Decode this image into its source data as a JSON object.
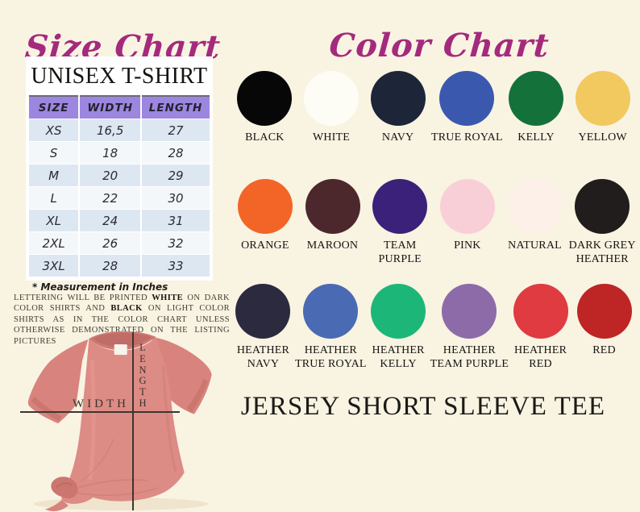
{
  "theme": {
    "background": "#f9f3e2",
    "title_color": "#a42a7d",
    "table_header_bg": "#9c86e0",
    "table_band_bg": "#dde7f2",
    "panel_bg": "#fefefe",
    "shirt_color": "#dd8b85"
  },
  "size_chart": {
    "title": "Size Chart",
    "subtitle": "UNISEX T-SHIRT",
    "columns": [
      "SIZE",
      "WIDTH",
      "LENGTH"
    ],
    "rows": [
      [
        "XS",
        "16,5",
        "27"
      ],
      [
        "S",
        "18",
        "28"
      ],
      [
        "M",
        "20",
        "29"
      ],
      [
        "L",
        "22",
        "30"
      ],
      [
        "XL",
        "24",
        "31"
      ],
      [
        "2XL",
        "26",
        "32"
      ],
      [
        "3XL",
        "28",
        "33"
      ]
    ],
    "footnote": "* Measurement in Inches"
  },
  "lettering_note": {
    "part1": "LETTERING WILL BE PRINTED ",
    "highlight1": "WHITE",
    "part2": " ON DARK COLOR SHIRTS AND ",
    "highlight2": "BLACK",
    "part3": " ON LIGHT COLOR SHIRTS AS IN THE COLOR CHART UNLESS OTHERWISE DEMONSTRATED ON THE LISTING PICTURES"
  },
  "tshirt_figure": {
    "width_label": "WIDTH",
    "length_label": "LENGTH"
  },
  "color_chart": {
    "title": "Color Chart",
    "rows": [
      [
        {
          "name": "black",
          "hex": "#070707",
          "label": [
            "BLACK"
          ]
        },
        {
          "name": "white",
          "hex": "#fdfdf6",
          "label": [
            "WHITE"
          ]
        },
        {
          "name": "navy",
          "hex": "#1d2538",
          "label": [
            "NAVY"
          ]
        },
        {
          "name": "true-royal",
          "hex": "#3a59ae",
          "label": [
            "TRUE ROYAL"
          ]
        },
        {
          "name": "kelly",
          "hex": "#15713a",
          "label": [
            "KELLY"
          ]
        },
        {
          "name": "yellow",
          "hex": "#f2c95f",
          "label": [
            "YELLOW"
          ]
        }
      ],
      [
        {
          "name": "orange",
          "hex": "#f26527",
          "label": [
            "ORANGE"
          ]
        },
        {
          "name": "maroon",
          "hex": "#4c282c",
          "label": [
            "MAROON"
          ]
        },
        {
          "name": "team-purple",
          "hex": "#3b2179",
          "label": [
            "TEAM",
            "PURPLE"
          ]
        },
        {
          "name": "pink",
          "hex": "#f9cfd7",
          "label": [
            "PINK"
          ]
        },
        {
          "name": "natural",
          "hex": "#fdf0e8",
          "label": [
            "NATURAL"
          ]
        },
        {
          "name": "dark-grey-heather",
          "hex": "#211d1c",
          "label": [
            "DARK GREY",
            "HEATHER"
          ]
        }
      ],
      [
        {
          "name": "heather-navy",
          "hex": "#2c2a3e",
          "label": [
            "HEATHER",
            "NAVY"
          ]
        },
        {
          "name": "heather-true-royal",
          "hex": "#4a6ab3",
          "label": [
            "HEATHER",
            "TRUE ROYAL"
          ]
        },
        {
          "name": "heather-kelly",
          "hex": "#1cb778",
          "label": [
            "HEATHER",
            "KELLY"
          ]
        },
        {
          "name": "heather-team-purple",
          "hex": "#8d6ba9",
          "label": [
            "HEATHER",
            "TEAM PURPLE"
          ]
        },
        {
          "name": "heather-red",
          "hex": "#df3b40",
          "label": [
            "HEATHER",
            "RED"
          ]
        },
        {
          "name": "red",
          "hex": "#be2525",
          "label": [
            "RED"
          ]
        }
      ]
    ]
  },
  "product": {
    "name": "JERSEY SHORT SLEEVE TEE"
  }
}
